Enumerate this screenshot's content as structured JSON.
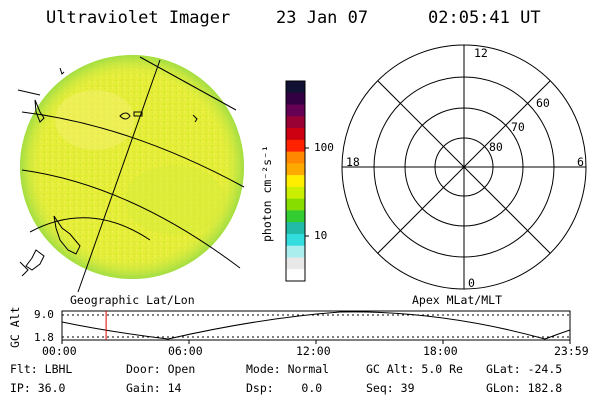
{
  "header": {
    "instrument": "Ultraviolet Imager",
    "date": "23 Jan 07",
    "time": "02:05:41 UT"
  },
  "colorbar": {
    "unit": "photon cm⁻²s⁻¹",
    "ticks": [
      "100",
      "10"
    ],
    "colors": [
      "#111133",
      "#330044",
      "#660055",
      "#990033",
      "#cc0011",
      "#ff2200",
      "#ff8800",
      "#ffaa00",
      "#ffee00",
      "#ccee00",
      "#88dd00",
      "#33cc33",
      "#22bbaa",
      "#33dddd",
      "#aaeeee",
      "#e8e8e8",
      "#ffffff"
    ]
  },
  "polar": {
    "clock_labels": [
      "12",
      "18",
      "6",
      "0"
    ],
    "lat_labels": [
      "60",
      "70",
      "80"
    ]
  },
  "captions": {
    "left": "Geographic Lat/Lon",
    "right": "Apex MLat/MLT"
  },
  "altitude_plot": {
    "ylabel": "GC Alt",
    "ymax": "9.0",
    "ymin": "1.8",
    "x_ticks": [
      "00:00",
      "06:00",
      "12:00",
      "18:00",
      "23:59"
    ],
    "marker_time": "02:05"
  },
  "status": {
    "row1": [
      {
        "label": "Flt:",
        "value": "LBHL"
      },
      {
        "label": "Door:",
        "value": "Open"
      },
      {
        "label": "Mode:",
        "value": "Normal"
      },
      {
        "label": "GC Alt:",
        "value": "5.0 Re"
      },
      {
        "label": "GLat:",
        "value": "-24.5"
      }
    ],
    "row2": [
      {
        "label": "IP:",
        "value": "36.0"
      },
      {
        "label": "Gain:",
        "value": "14"
      },
      {
        "label": "Dsp:",
        "value": "0.0"
      },
      {
        "label": "Seq:",
        "value": "39"
      },
      {
        "label": "GLon:",
        "value": "182.8"
      }
    ]
  }
}
